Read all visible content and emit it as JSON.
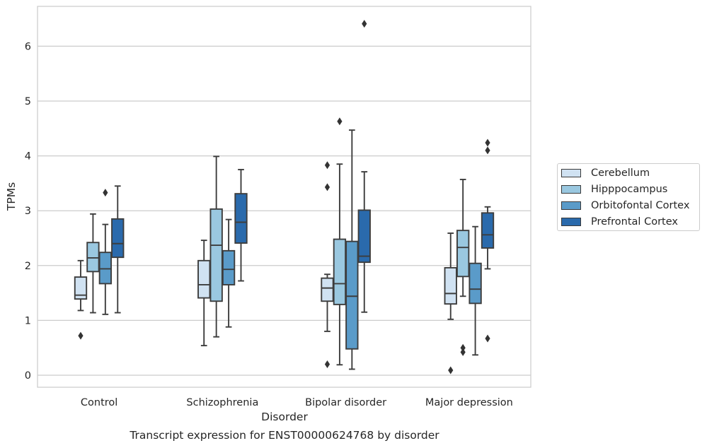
{
  "chart_data": {
    "type": "box",
    "caption": "Transcript expression for ENST00000624768 by disorder",
    "xlabel": "Disorder",
    "ylabel": "TPMs",
    "ylim": [
      -0.2,
      6.75
    ],
    "yticks": [
      0,
      1,
      2,
      3,
      4,
      5,
      6
    ],
    "grid": true,
    "legend_position": "right",
    "categories": [
      "Control",
      "Schizophrenia",
      "Bipolar disorder",
      "Major depression"
    ],
    "series": [
      {
        "name": "Cerebellum",
        "color": "#d0e2f2",
        "boxes": [
          {
            "whislo": 1.18,
            "q1": 1.39,
            "med": 1.46,
            "q3": 1.79,
            "whishi": 2.09,
            "fliers": [
              0.72
            ]
          },
          {
            "whislo": 0.54,
            "q1": 1.41,
            "med": 1.65,
            "q3": 2.09,
            "whishi": 2.46,
            "fliers": []
          },
          {
            "whislo": 0.8,
            "q1": 1.35,
            "med": 1.59,
            "q3": 1.77,
            "whishi": 1.84,
            "fliers": [
              3.83,
              3.43,
              0.2
            ]
          },
          {
            "whislo": 1.02,
            "q1": 1.3,
            "med": 1.49,
            "q3": 1.96,
            "whishi": 2.59,
            "fliers": [
              0.09
            ]
          }
        ]
      },
      {
        "name": "Hipppocampus",
        "color": "#9ac8e0",
        "boxes": [
          {
            "whislo": 1.14,
            "q1": 1.89,
            "med": 2.14,
            "q3": 2.42,
            "whishi": 2.94,
            "fliers": []
          },
          {
            "whislo": 0.7,
            "q1": 1.35,
            "med": 2.37,
            "q3": 3.03,
            "whishi": 3.99,
            "fliers": []
          },
          {
            "whislo": 0.19,
            "q1": 1.29,
            "med": 1.67,
            "q3": 2.48,
            "whishi": 3.85,
            "fliers": [
              4.63
            ]
          },
          {
            "whislo": 1.44,
            "q1": 1.8,
            "med": 2.33,
            "q3": 2.64,
            "whishi": 3.57,
            "fliers": [
              0.5,
              0.42
            ]
          }
        ]
      },
      {
        "name": "Orbitofontal Cortex",
        "color": "#5a9bc9",
        "boxes": [
          {
            "whislo": 1.11,
            "q1": 1.67,
            "med": 1.94,
            "q3": 2.24,
            "whishi": 2.75,
            "fliers": [
              3.33
            ]
          },
          {
            "whislo": 0.88,
            "q1": 1.65,
            "med": 1.93,
            "q3": 2.27,
            "whishi": 2.84,
            "fliers": []
          },
          {
            "whislo": 0.11,
            "q1": 0.48,
            "med": 1.44,
            "q3": 2.44,
            "whishi": 4.47,
            "fliers": []
          },
          {
            "whislo": 0.37,
            "q1": 1.31,
            "med": 1.57,
            "q3": 2.04,
            "whishi": 2.71,
            "fliers": []
          }
        ]
      },
      {
        "name": "Prefrontal Cortex",
        "color": "#2a6aac",
        "boxes": [
          {
            "whislo": 1.14,
            "q1": 2.15,
            "med": 2.4,
            "q3": 2.85,
            "whishi": 3.45,
            "fliers": []
          },
          {
            "whislo": 1.72,
            "q1": 2.41,
            "med": 2.79,
            "q3": 3.31,
            "whishi": 3.75,
            "fliers": []
          },
          {
            "whislo": 1.15,
            "q1": 2.06,
            "med": 2.17,
            "q3": 3.01,
            "whishi": 3.71,
            "fliers": [
              6.41
            ]
          },
          {
            "whislo": 1.94,
            "q1": 2.32,
            "med": 2.56,
            "q3": 2.96,
            "whishi": 3.07,
            "fliers": [
              4.24,
              4.1,
              0.67
            ]
          }
        ]
      }
    ]
  }
}
